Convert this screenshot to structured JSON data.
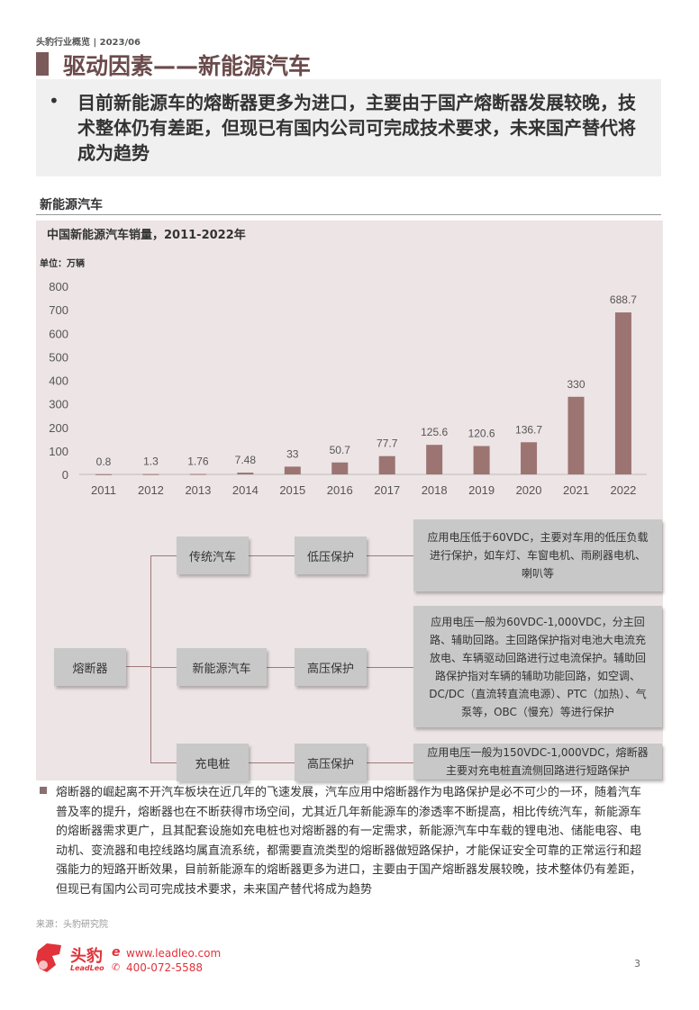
{
  "header": {
    "breadcrumb": "头豹行业概览 | 2023/06",
    "title": "驱动因素——新能源汽车"
  },
  "summary": {
    "bullet": "•",
    "text": "目前新能源车的熔断器更多为进口，主要由于国产熔断器发展较晚，技术整体仍有差距，但现已有国内公司可完成技术要求，未来国产替代将成为趋势"
  },
  "section": {
    "title": "新能源汽车"
  },
  "chart_data": {
    "type": "bar",
    "title": "中国新能源汽车销量，2011-2022年",
    "ylabel": "单位：万辆",
    "ylim": [
      0,
      800
    ],
    "yticks": [
      "0",
      "100",
      "200",
      "300",
      "400",
      "500",
      "600",
      "700",
      "800"
    ],
    "categories": [
      "2011",
      "2012",
      "2013",
      "2014",
      "2015",
      "2016",
      "2017",
      "2018",
      "2019",
      "2020",
      "2021",
      "2022"
    ],
    "values": [
      0.8,
      1.3,
      1.76,
      7.48,
      33,
      50.7,
      77.7,
      125.6,
      120.6,
      136.7,
      330,
      688.7
    ],
    "labels": [
      "0.8",
      "1.3",
      "1.76",
      "7.48",
      "33",
      "50.7",
      "77.7",
      "125.6",
      "120.6",
      "136.7",
      "330",
      "688.7"
    ],
    "bar_color": "#9c7472",
    "grid": false
  },
  "diagram": {
    "root": "熔断器",
    "branches": [
      {
        "type": "传统汽车",
        "protection": "低压保护",
        "desc": "应用电压低于60VDC，主要对车用的低压负载进行保护，如车灯、车窗电机、雨刷器电机、喇叭等"
      },
      {
        "type": "新能源汽车",
        "protection": "高压保护",
        "desc": "应用电压一般为60VDC-1,000VDC，分主回路、辅助回路。主回路保护指对电池大电流充放电、车辆驱动回路进行过电流保护。辅助回路保护指对车辆的辅助功能回路，如空调、DC/DC（直流转直流电源）、PTC（加热）、气泵等，OBC（慢充）等进行保护"
      },
      {
        "type": "充电桩",
        "protection": "高压保护",
        "desc": "应用电压一般为150VDC-1,000VDC，熔断器主要对充电桩直流侧回路进行短路保护"
      }
    ]
  },
  "body": "熔断器的崛起离不开汽车板块在近几年的飞速发展，汽车应用中熔断器作为电路保护是必不可少的一环，随着汽车普及率的提升，熔断器也在不断获得市场空间，尤其近几年新能源车的渗透率不断提高，相比传统汽车，新能源车的熔断器需求更广，且其配套设施如充电桩也对熔断器的有一定需求，新能源汽车中车载的锂电池、储能电容、电动机、变流器和电控线路均属直流系统，都需要直流类型的熔断器做短路保护，才能保证安全可靠的正常运行和超强能力的短路开断效果，目前新能源车的熔断器更多为进口，主要由于国产熔断器发展较晚，技术整体仍有差距，但现已有国内公司可完成技术要求，未来国产替代将成为趋势",
  "source": "来源：头豹研究院",
  "footer": {
    "logo_text": "头豹 LeadLeo",
    "website": "www.leadleo.com",
    "phone": "400-072-5588",
    "page": "3"
  }
}
